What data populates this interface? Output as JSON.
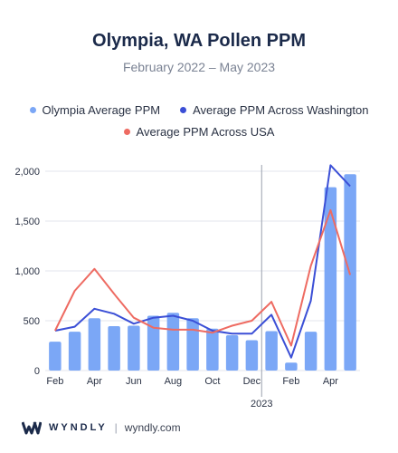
{
  "chart_data": {
    "type": "bar",
    "title": "Olympia, WA Pollen PPM",
    "subtitle": "February 2022 – May 2023",
    "x": [
      "2022-02",
      "2022-03",
      "2022-04",
      "2022-05",
      "2022-06",
      "2022-07",
      "2022-08",
      "2022-09",
      "2022-10",
      "2022-11",
      "2022-12",
      "2023-01",
      "2023-02",
      "2023-03",
      "2023-04",
      "2023-05"
    ],
    "tick_labels": [
      {
        "label": "Feb",
        "x": "2022-02"
      },
      {
        "label": "Apr",
        "x": "2022-04"
      },
      {
        "label": "Jun",
        "x": "2022-06"
      },
      {
        "label": "Aug",
        "x": "2022-08"
      },
      {
        "label": "Oct",
        "x": "2022-10"
      },
      {
        "label": "Dec",
        "x": "2022-12"
      },
      {
        "label": "Feb",
        "x": "2023-02"
      },
      {
        "label": "Apr",
        "x": "2023-04"
      }
    ],
    "year_marker": {
      "label": "2023",
      "x": "2023-01"
    },
    "ylim": [
      0,
      2100
    ],
    "y_ticks": [
      {
        "value": 0,
        "label": "0"
      },
      {
        "value": 500,
        "label": "500"
      },
      {
        "value": 1000,
        "label": "1,000"
      },
      {
        "value": 1500,
        "label": "1,500"
      },
      {
        "value": 2000,
        "label": "2,000"
      }
    ],
    "grid": "horizontal",
    "legend_position": "top",
    "series": [
      {
        "name": "Olympia Average PPM",
        "kind": "bar",
        "color": "#7ba7f6",
        "values": [
          290,
          390,
          525,
          445,
          450,
          550,
          580,
          525,
          420,
          355,
          305,
          395,
          80,
          390,
          1840,
          1970
        ]
      },
      {
        "name": "Average PPM Across Washington",
        "kind": "line",
        "color": "#3b4fd6",
        "values": [
          400,
          440,
          620,
          570,
          470,
          530,
          550,
          500,
          400,
          370,
          370,
          560,
          130,
          700,
          2060,
          1850
        ]
      },
      {
        "name": "Average PPM Across USA",
        "kind": "line",
        "color": "#ee6b62",
        "values": [
          400,
          800,
          1020,
          770,
          530,
          430,
          410,
          410,
          380,
          450,
          500,
          690,
          250,
          1050,
          1610,
          960
        ]
      }
    ]
  },
  "footer": {
    "brand": "WYNDLY",
    "separator": "|",
    "url": "wyndly.com"
  }
}
